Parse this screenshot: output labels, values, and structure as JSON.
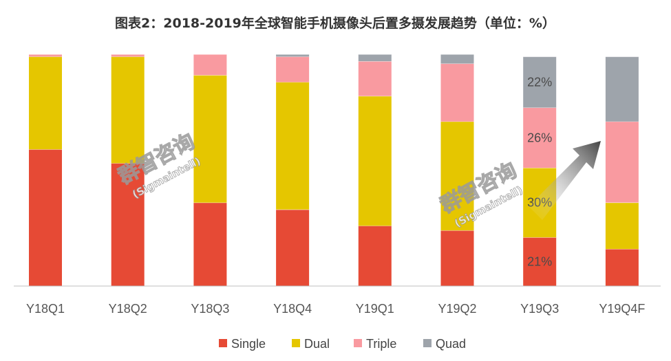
{
  "chart_data": {
    "type": "bar",
    "stacked": true,
    "title": "图表2：2018-2019年全球智能手机摄像头后置多摄发展趋势（单位：%）",
    "categories": [
      "Y18Q1",
      "Y18Q2",
      "Y18Q3",
      "Y18Q4",
      "Y19Q1",
      "Y19Q2",
      "Y19Q3",
      "Y19Q4F"
    ],
    "series": [
      {
        "name": "Single",
        "color": "#e64a35",
        "values": [
          59,
          53,
          36,
          33,
          26,
          24,
          21,
          16
        ]
      },
      {
        "name": "Dual",
        "color": "#e5c600",
        "values": [
          40,
          46,
          55,
          55,
          56,
          47,
          30,
          20
        ]
      },
      {
        "name": "Triple",
        "color": "#f99aa0",
        "values": [
          1,
          1,
          9,
          11,
          15,
          25,
          26,
          35
        ]
      },
      {
        "name": "Quad",
        "color": "#9ea4ab",
        "values": [
          0,
          0,
          0,
          1,
          3,
          4,
          22,
          28
        ]
      }
    ],
    "data_labels": {
      "Y19Q3": [
        "21%",
        "30%",
        "26%",
        "22%"
      ]
    },
    "ylim": [
      0,
      100
    ],
    "legend_position": "bottom",
    "grid": false
  },
  "watermark": {
    "cn": "群智咨询",
    "en": "(Sigmaintell)"
  }
}
